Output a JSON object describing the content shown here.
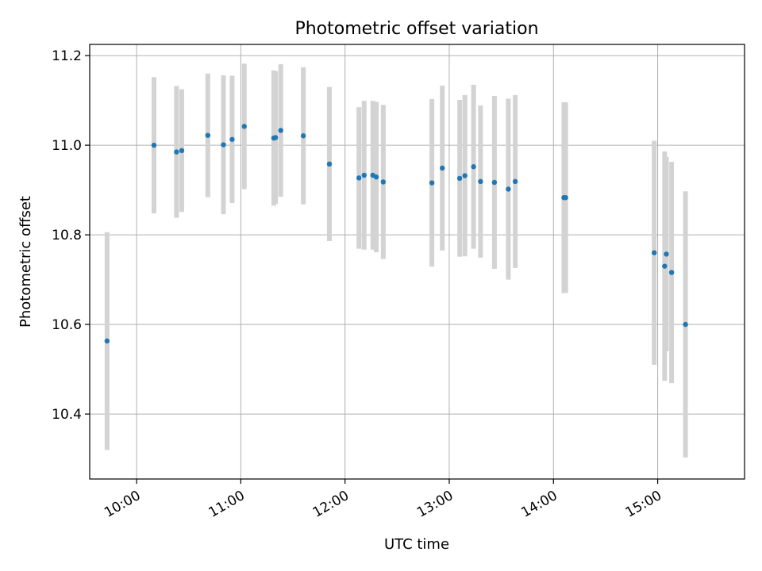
{
  "chart_data": {
    "type": "scatter",
    "title": "Photometric offset variation",
    "xlabel": "UTC time",
    "ylabel": "Photometric offset",
    "grid": true,
    "error_bars": true,
    "colors": {
      "points": "#1f77b4",
      "error_bars": "#d3d3d3"
    },
    "x_ticks": [
      "10:00",
      "11:00",
      "12:00",
      "13:00",
      "14:00",
      "15:00"
    ],
    "y_ticks": [
      10.4,
      10.6,
      10.8,
      11.0,
      11.2
    ],
    "xlim": [
      "09:33",
      "15:50"
    ],
    "ylim": [
      10.255,
      11.225
    ],
    "points": [
      {
        "x": "09:43",
        "y": 10.563,
        "err": 0.243
      },
      {
        "x": "10:10",
        "y": 11.0,
        "err": 0.152
      },
      {
        "x": "10:23",
        "y": 10.985,
        "err": 0.147
      },
      {
        "x": "10:26",
        "y": 10.988,
        "err": 0.137
      },
      {
        "x": "10:41",
        "y": 11.022,
        "err": 0.138
      },
      {
        "x": "10:50",
        "y": 11.001,
        "err": 0.155
      },
      {
        "x": "10:55",
        "y": 11.013,
        "err": 0.142
      },
      {
        "x": "11:02",
        "y": 11.042,
        "err": 0.14
      },
      {
        "x": "11:19",
        "y": 11.016,
        "err": 0.151
      },
      {
        "x": "11:20",
        "y": 11.017,
        "err": 0.148
      },
      {
        "x": "11:23",
        "y": 11.033,
        "err": 0.148
      },
      {
        "x": "11:36",
        "y": 11.021,
        "err": 0.153
      },
      {
        "x": "11:51",
        "y": 10.958,
        "err": 0.172
      },
      {
        "x": "12:08",
        "y": 10.927,
        "err": 0.158
      },
      {
        "x": "12:11",
        "y": 10.933,
        "err": 0.166
      },
      {
        "x": "12:16",
        "y": 10.933,
        "err": 0.166
      },
      {
        "x": "12:18",
        "y": 10.929,
        "err": 0.168
      },
      {
        "x": "12:22",
        "y": 10.918,
        "err": 0.172
      },
      {
        "x": "12:50",
        "y": 10.916,
        "err": 0.187
      },
      {
        "x": "12:56",
        "y": 10.949,
        "err": 0.184
      },
      {
        "x": "13:06",
        "y": 10.926,
        "err": 0.175
      },
      {
        "x": "13:09",
        "y": 10.932,
        "err": 0.18
      },
      {
        "x": "13:14",
        "y": 10.952,
        "err": 0.183
      },
      {
        "x": "13:18",
        "y": 10.919,
        "err": 0.17
      },
      {
        "x": "13:26",
        "y": 10.917,
        "err": 0.193
      },
      {
        "x": "13:34",
        "y": 10.902,
        "err": 0.202
      },
      {
        "x": "13:38",
        "y": 10.919,
        "err": 0.193
      },
      {
        "x": "14:06",
        "y": 10.883,
        "err": 0.213
      },
      {
        "x": "14:07",
        "y": 10.883,
        "err": 0.213
      },
      {
        "x": "14:58",
        "y": 10.76,
        "err": 0.25
      },
      {
        "x": "15:04",
        "y": 10.73,
        "err": 0.256
      },
      {
        "x": "15:05",
        "y": 10.757,
        "err": 0.217
      },
      {
        "x": "15:08",
        "y": 10.716,
        "err": 0.247
      },
      {
        "x": "15:16",
        "y": 10.6,
        "err": 0.297
      }
    ]
  }
}
